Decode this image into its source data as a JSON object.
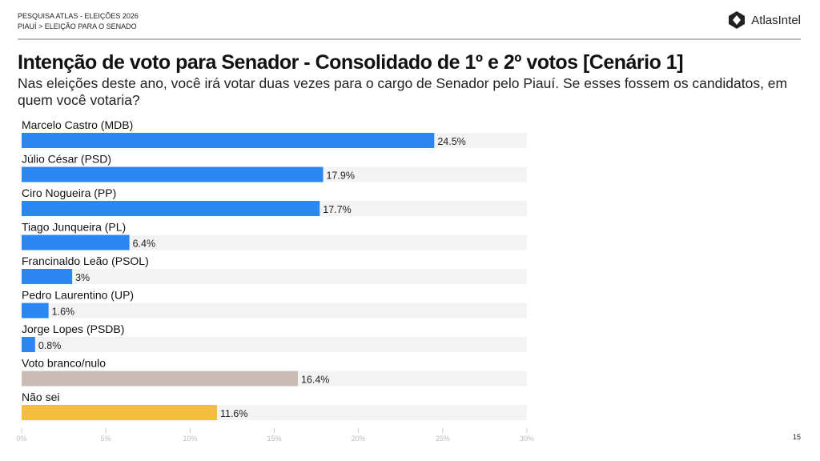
{
  "header": {
    "line1": "PESQUISA ATLAS - ELEIÇÕES 2026",
    "line2": "PIAUÍ > ELEIÇÃO PARA O SENADO",
    "brand": "AtlasIntel"
  },
  "page_number": "15",
  "colors": {
    "candidate": "#2b87f4",
    "blank": "#c8bcb5",
    "unknown": "#f5bd3e",
    "track": "#f3f3f3"
  },
  "chart_data": {
    "type": "bar",
    "orientation": "horizontal",
    "title": "Intenção de voto para Senador - Consolidado de 1º e 2º votos [Cenário 1]",
    "subtitle": "Nas eleições deste ano, você irá votar duas vezes para o cargo de Senador pelo Piauí. Se esses fossem os candidatos, em quem você votaria?",
    "categories": [
      "Marcelo Castro (MDB)",
      "Júlio César (PSD)",
      "Ciro Nogueira (PP)",
      "Tiago Junqueira (PL)",
      "Francinaldo Leão (PSOL)",
      "Pedro Laurentino (UP)",
      "Jorge Lopes (PSDB)",
      "Voto branco/nulo",
      "Não sei"
    ],
    "values": [
      24.5,
      17.9,
      17.7,
      6.4,
      3,
      1.6,
      0.8,
      16.4,
      11.6
    ],
    "value_labels": [
      "24.5%",
      "17.9%",
      "17.7%",
      "6.4%",
      "3%",
      "1.6%",
      "0.8%",
      "16.4%",
      "11.6%"
    ],
    "color_keys": [
      "candidate",
      "candidate",
      "candidate",
      "candidate",
      "candidate",
      "candidate",
      "candidate",
      "blank",
      "unknown"
    ],
    "xlim": [
      0,
      30
    ],
    "xticks": [
      0,
      5,
      10,
      15,
      20,
      25,
      30
    ],
    "xtick_labels": [
      "0%",
      "5%",
      "10%",
      "15%",
      "20%",
      "25%",
      "30%"
    ],
    "grid": false,
    "legend": "none"
  }
}
